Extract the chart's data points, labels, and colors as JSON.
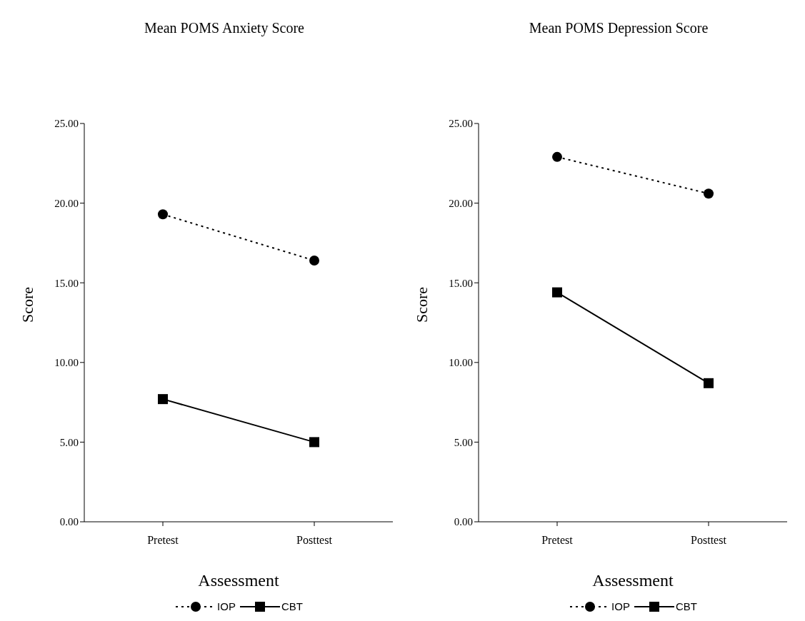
{
  "chart_data": [
    {
      "type": "line",
      "title": "Mean POMS Anxiety Score",
      "xlabel": "Assessment",
      "ylabel": "Score",
      "categories": [
        "Pretest",
        "Posttest"
      ],
      "series": [
        {
          "name": "IOP",
          "color": "#000000",
          "values": [
            19.3,
            16.4
          ],
          "marker": "circle",
          "line_style": "dotted"
        },
        {
          "name": "CBT",
          "color": "#000000",
          "values": [
            7.7,
            5.0
          ],
          "marker": "square",
          "line_style": "solid"
        }
      ],
      "ylim": [
        0,
        25
      ],
      "yticks": [
        {
          "value": 0,
          "label": "0.00"
        },
        {
          "value": 5,
          "label": "5.00"
        },
        {
          "value": 10,
          "label": "10.00"
        },
        {
          "value": 15,
          "label": "15.00"
        },
        {
          "value": 20,
          "label": "20.00"
        },
        {
          "value": 25,
          "label": "25.00"
        }
      ],
      "grid": false,
      "legend": "bottom"
    },
    {
      "type": "line",
      "title": "Mean POMS Depression Score",
      "xlabel": "Assessment",
      "ylabel": "Score",
      "categories": [
        "Pretest",
        "Posttest"
      ],
      "series": [
        {
          "name": "IOP",
          "color": "#000000",
          "values": [
            22.9,
            20.6
          ],
          "marker": "circle",
          "line_style": "dotted"
        },
        {
          "name": "CBT",
          "color": "#000000",
          "values": [
            14.4,
            8.7
          ],
          "marker": "square",
          "line_style": "solid"
        }
      ],
      "ylim": [
        0,
        25
      ],
      "yticks": [
        {
          "value": 0,
          "label": "0.00"
        },
        {
          "value": 5,
          "label": "5.00"
        },
        {
          "value": 10,
          "label": "10.00"
        },
        {
          "value": 15,
          "label": "15.00"
        },
        {
          "value": 20,
          "label": "20.00"
        },
        {
          "value": 25,
          "label": "25.00"
        }
      ],
      "grid": false,
      "legend": "bottom"
    }
  ]
}
